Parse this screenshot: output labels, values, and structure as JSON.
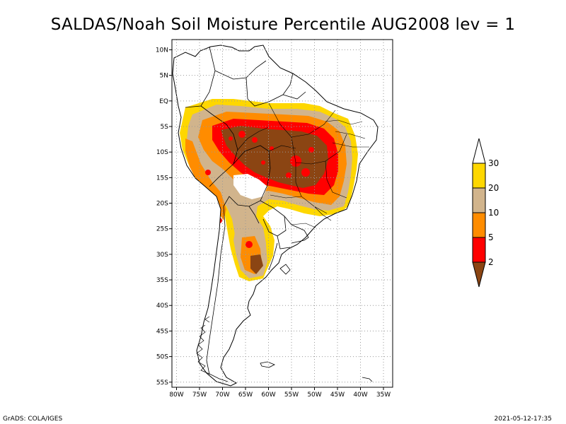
{
  "title": "SALDAS/Noah Soil Moisture Percentile AUG2008 lev = 1",
  "lat_ticks": [
    "10N",
    "5N",
    "EQ",
    "5S",
    "10S",
    "15S",
    "20S",
    "25S",
    "30S",
    "35S",
    "40S",
    "45S",
    "50S",
    "55S"
  ],
  "lon_ticks": [
    "80W",
    "75W",
    "70W",
    "65W",
    "60W",
    "55W",
    "50W",
    "45W",
    "40W",
    "35W"
  ],
  "map_extent": {
    "lon": [
      -81,
      -33
    ],
    "lat": [
      -56,
      12
    ]
  },
  "colorbar": {
    "labels": [
      "30",
      "20",
      "10",
      "5",
      "2"
    ],
    "colors": [
      "#ffffff",
      "#fed700",
      "#d1b48c",
      "#ff8c00",
      "#ff0000",
      "#8b4513"
    ]
  },
  "footer_left": "GrADS: COLA/IGES",
  "footer_right": "2021-05-12-17:35"
}
